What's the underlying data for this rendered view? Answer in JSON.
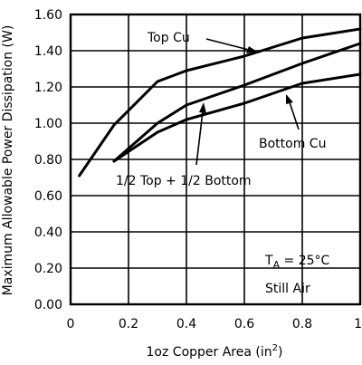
{
  "chart_data": {
    "type": "line",
    "xlabel_main": "1oz Copper Area (in",
    "xlabel_sup": "2",
    "xlabel_tail": ")",
    "ylabel": "Maximum Allowable Power Dissipation (W)",
    "xlim": [
      0,
      1
    ],
    "ylim": [
      0,
      1.6
    ],
    "xticks": [
      0,
      0.2,
      0.4,
      0.6,
      0.8,
      1
    ],
    "xtick_labels": [
      "0",
      "0.2",
      "0.4",
      "0.6",
      "0.8",
      "1"
    ],
    "yticks": [
      0,
      0.2,
      0.4,
      0.6,
      0.8,
      1.0,
      1.2,
      1.4,
      1.6
    ],
    "ytick_labels": [
      "0.00",
      "0.20",
      "0.40",
      "0.60",
      "0.80",
      "1.00",
      "1.20",
      "1.40",
      "1.60"
    ],
    "grid": true,
    "series": [
      {
        "name": "Top Cu",
        "points": [
          [
            0.03,
            0.71
          ],
          [
            0.15,
            0.99
          ],
          [
            0.3,
            1.23
          ],
          [
            0.4,
            1.29
          ],
          [
            0.6,
            1.37
          ],
          [
            0.8,
            1.47
          ],
          [
            1.0,
            1.52
          ]
        ]
      },
      {
        "name": "1/2 Top + 1/2 Bottom",
        "points": [
          [
            0.15,
            0.79
          ],
          [
            0.3,
            1.0
          ],
          [
            0.4,
            1.1
          ],
          [
            0.6,
            1.21
          ],
          [
            0.8,
            1.33
          ],
          [
            1.0,
            1.44
          ]
        ]
      },
      {
        "name": "Bottom Cu",
        "points": [
          [
            0.15,
            0.79
          ],
          [
            0.3,
            0.95
          ],
          [
            0.4,
            1.02
          ],
          [
            0.6,
            1.11
          ],
          [
            0.8,
            1.22
          ],
          [
            1.0,
            1.27
          ]
        ]
      }
    ],
    "annotations": {
      "top_cu": "Top Cu",
      "bottom_cu": "Bottom Cu",
      "half_half": "1/2 Top + 1/2 Bottom",
      "ta_main": "T",
      "ta_sub": "A",
      "ta_value": " = 25°C",
      "still_air": "Still Air"
    }
  }
}
